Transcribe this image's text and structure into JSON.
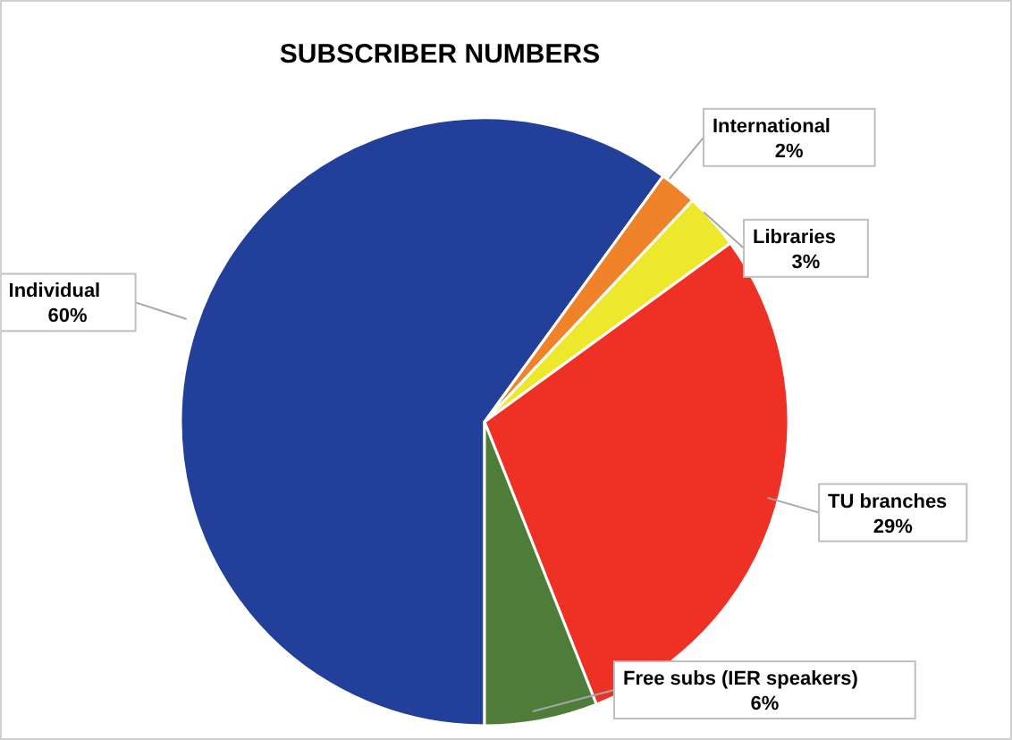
{
  "chart_data": {
    "type": "pie",
    "title": "SUBSCRIBER NUMBERS",
    "categories": [
      "Individual",
      "International",
      "Libraries",
      "TU branches",
      "Free subs (IER speakers)"
    ],
    "values": [
      60,
      2,
      3,
      29,
      6
    ],
    "value_labels": [
      "60%",
      "2%",
      "3%",
      "29%",
      "6%"
    ],
    "colors": [
      "#22409a",
      "#f0832a",
      "#eee82c",
      "#ee3124",
      "#4e7d3a"
    ],
    "legend": false
  }
}
